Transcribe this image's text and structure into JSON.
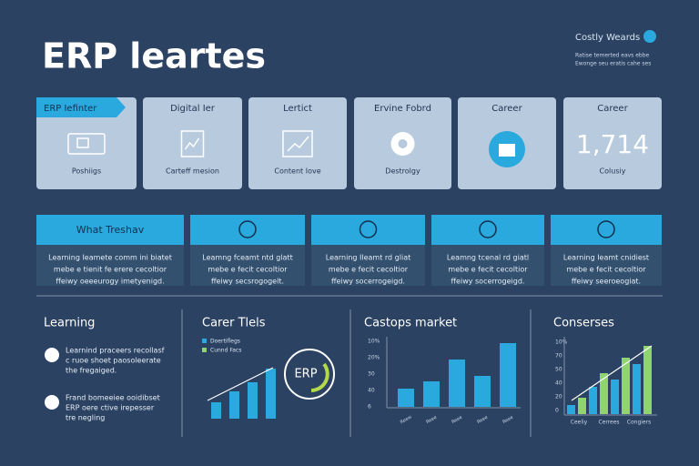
{
  "header": {
    "title": "ERP leartes",
    "badge": "Costly Weards",
    "note": [
      "Ratise temerted eavs ebbe",
      "Ewonge seu eratis cahe ses"
    ]
  },
  "cards": [
    {
      "tab": "ERP Iefinter",
      "caption": "Poshiigs"
    },
    {
      "label": "Digital Ier",
      "caption": "Carteff mesion"
    },
    {
      "label": "Lertict",
      "caption": "Content Iove"
    },
    {
      "label": "Ervine Fobrd",
      "caption": "Destrolgy"
    },
    {
      "label": "Career"
    },
    {
      "label": "Career",
      "value": "1,714",
      "caption": "Colusiy"
    }
  ],
  "features": [
    {
      "title": "What Treshav",
      "text": [
        "Learning Ieamete comm ini biatet",
        "mebe e tienit fe erere cecoltior",
        "ffeiwy oeeeurogy imetyenigd."
      ]
    },
    {
      "text": [
        "Leamng fceamt ntd glatt",
        "mebe e fecit cecoltior",
        "ffeiwy secsrogogelt."
      ]
    },
    {
      "text": [
        "Learning Ileamt rd gliat",
        "mebe e fecit cecoltior",
        "ffeiwy socerrogeigd."
      ]
    },
    {
      "text": [
        "Leamng tcenal rd giatl",
        "mebe e fecit cecoltior",
        "ffeiwy socerrogeigd."
      ]
    },
    {
      "text": [
        "Learning Ieamt cnidiest",
        "mebe e fecit cecoltior",
        "ffeiwy seeroeogiat."
      ]
    }
  ],
  "panels": {
    "learning": {
      "title": "Learning",
      "items": [
        [
          "Learnind praceers recollasf",
          "c ruoe shoet paosoleerate",
          "the fregaiged."
        ],
        [
          "Frand bomeeiee ooidibset",
          "ERP oere ctive irepesser",
          "tre negling"
        ]
      ]
    },
    "career": {
      "title": "Carer Tlels",
      "legend": [
        "Doertiflegs",
        "Cunnd Facs"
      ],
      "bars": [
        18,
        30,
        40,
        55
      ],
      "badge": "ERP"
    },
    "market": {
      "title": "Castops market",
      "yticks": [
        "10%",
        "20%",
        "30",
        "40",
        "6"
      ],
      "bars": [
        20,
        28,
        52,
        34,
        70
      ],
      "xlabels": [
        "Reew",
        "Reee",
        "Reee",
        "Reee",
        "Reee"
      ]
    },
    "conserses": {
      "title": "Conserses",
      "yticks": [
        "10%",
        "70",
        "50",
        "40",
        "20",
        "0"
      ],
      "bars": [
        10,
        18,
        30,
        45,
        38,
        62,
        55,
        75
      ],
      "xlabels": [
        "Ceeliy",
        "Cerrees",
        "Congiers"
      ]
    }
  }
}
